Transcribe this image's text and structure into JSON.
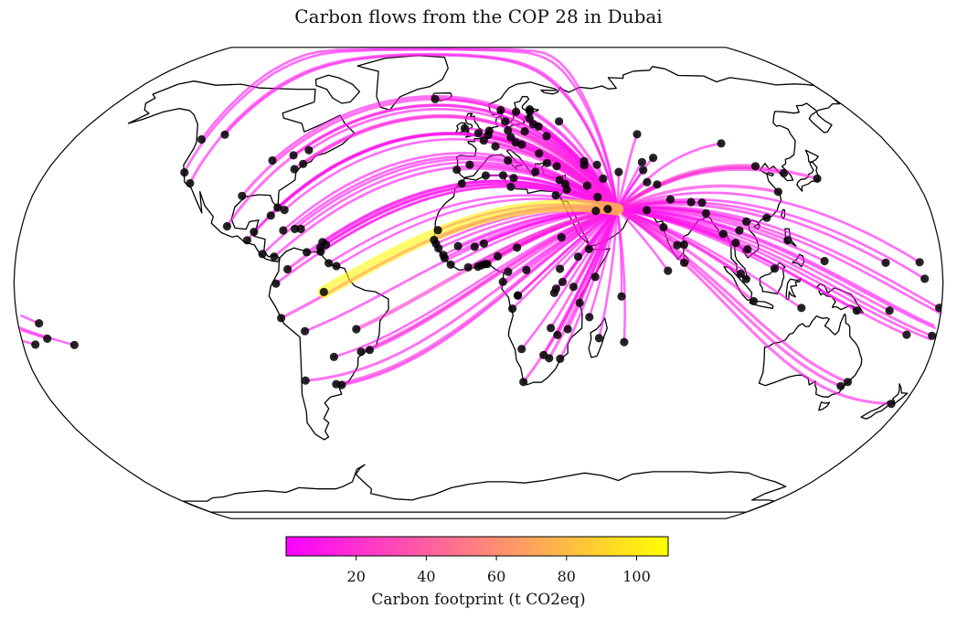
{
  "title": "Carbon flows from the COP 28 in Dubai",
  "colorbar": {
    "label": "Carbon footprint (t CO2eq)",
    "ticks": [
      20,
      40,
      60,
      80,
      100
    ],
    "range": [
      0,
      109
    ],
    "colormap": "spring",
    "color_low": "#ff00ff",
    "color_high": "#ffff00"
  },
  "map": {
    "projection": "Robinson",
    "hub": {
      "name": "Dubai",
      "lon": 55.3,
      "lat": 25.2
    },
    "coastline_color": "#000000",
    "point_color": "#000000",
    "flows": [
      {
        "lon": -74.0,
        "lat": 40.7,
        "value": 12
      },
      {
        "lon": -87.6,
        "lat": 41.9,
        "value": 8
      },
      {
        "lon": -118.2,
        "lat": 34.1,
        "value": 9
      },
      {
        "lon": -122.4,
        "lat": 37.8,
        "value": 6
      },
      {
        "lon": -79.4,
        "lat": 43.7,
        "value": 10
      },
      {
        "lon": -73.6,
        "lat": 45.5,
        "value": 7
      },
      {
        "lon": -123.1,
        "lat": 49.3,
        "value": 6
      },
      {
        "lon": -114.1,
        "lat": 51.0,
        "value": 5
      },
      {
        "lon": -77.0,
        "lat": 38.9,
        "value": 14
      },
      {
        "lon": -80.2,
        "lat": 25.8,
        "value": 9
      },
      {
        "lon": -95.4,
        "lat": 29.8,
        "value": 11
      },
      {
        "lon": -99.1,
        "lat": 19.4,
        "value": 10
      },
      {
        "lon": -90.5,
        "lat": 14.6,
        "value": 7
      },
      {
        "lon": -84.1,
        "lat": 9.9,
        "value": 6
      },
      {
        "lon": -79.5,
        "lat": 9.0,
        "value": 7
      },
      {
        "lon": -74.1,
        "lat": 4.7,
        "value": 12
      },
      {
        "lon": -78.5,
        "lat": -0.2,
        "value": 8
      },
      {
        "lon": -77.0,
        "lat": -12.0,
        "value": 11
      },
      {
        "lon": -66.9,
        "lat": 10.5,
        "value": 6
      },
      {
        "lon": -61.5,
        "lat": 10.7,
        "value": 5
      },
      {
        "lon": -60.0,
        "lat": -3.1,
        "value": 105
      },
      {
        "lon": -47.9,
        "lat": -15.8,
        "value": 20
      },
      {
        "lon": -43.2,
        "lat": -22.9,
        "value": 14
      },
      {
        "lon": -46.6,
        "lat": -23.5,
        "value": 13
      },
      {
        "lon": -58.4,
        "lat": -34.6,
        "value": 12
      },
      {
        "lon": -56.2,
        "lat": -34.9,
        "value": 6
      },
      {
        "lon": -70.7,
        "lat": -33.4,
        "value": 9
      },
      {
        "lon": -68.1,
        "lat": -16.5,
        "value": 7
      },
      {
        "lon": -57.6,
        "lat": -25.3,
        "value": 5
      },
      {
        "lon": -72.3,
        "lat": 18.5,
        "value": 6
      },
      {
        "lon": -76.8,
        "lat": 18.0,
        "value": 6
      },
      {
        "lon": -69.9,
        "lat": 18.5,
        "value": 5
      },
      {
        "lon": -82.4,
        "lat": 23.1,
        "value": 7
      },
      {
        "lon": -61.0,
        "lat": 14.0,
        "value": 4
      },
      {
        "lon": -59.6,
        "lat": 13.1,
        "value": 4
      },
      {
        "lon": -77.3,
        "lat": 25.0,
        "value": 5
      },
      {
        "lon": -88.2,
        "lat": 17.5,
        "value": 4
      },
      {
        "lon": -61.7,
        "lat": 12.1,
        "value": 4
      },
      {
        "lon": -55.2,
        "lat": 5.8,
        "value": 4
      },
      {
        "lon": -58.2,
        "lat": 6.8,
        "value": 4
      },
      {
        "lon": -0.1,
        "lat": 51.5,
        "value": 15
      },
      {
        "lon": 2.35,
        "lat": 48.9,
        "value": 16
      },
      {
        "lon": 13.4,
        "lat": 52.5,
        "value": 14
      },
      {
        "lon": 12.5,
        "lat": 41.9,
        "value": 12
      },
      {
        "lon": -3.7,
        "lat": 40.4,
        "value": 11
      },
      {
        "lon": -9.1,
        "lat": 38.7,
        "value": 8
      },
      {
        "lon": 4.9,
        "lat": 52.4,
        "value": 10
      },
      {
        "lon": 4.35,
        "lat": 50.85,
        "value": 12
      },
      {
        "lon": 7.4,
        "lat": 46.9,
        "value": 8
      },
      {
        "lon": 16.4,
        "lat": 48.2,
        "value": 8
      },
      {
        "lon": 18.1,
        "lat": 59.3,
        "value": 9
      },
      {
        "lon": 10.75,
        "lat": 59.9,
        "value": 9
      },
      {
        "lon": 12.6,
        "lat": 55.7,
        "value": 8
      },
      {
        "lon": 24.9,
        "lat": 60.2,
        "value": 7
      },
      {
        "lon": -21.9,
        "lat": 64.1,
        "value": 6
      },
      {
        "lon": -6.3,
        "lat": 53.3,
        "value": 7
      },
      {
        "lon": 21.0,
        "lat": 52.2,
        "value": 9
      },
      {
        "lon": 14.4,
        "lat": 50.1,
        "value": 6
      },
      {
        "lon": 19.0,
        "lat": 47.5,
        "value": 6
      },
      {
        "lon": 26.1,
        "lat": 44.4,
        "value": 6
      },
      {
        "lon": 23.7,
        "lat": 37.98,
        "value": 7
      },
      {
        "lon": 28.97,
        "lat": 41.0,
        "value": 10
      },
      {
        "lon": 32.9,
        "lat": 39.9,
        "value": 8
      },
      {
        "lon": 30.5,
        "lat": 50.45,
        "value": 7
      },
      {
        "lon": 37.6,
        "lat": 55.75,
        "value": 12
      },
      {
        "lon": 27.6,
        "lat": 53.9,
        "value": 5
      },
      {
        "lon": 24.1,
        "lat": 56.95,
        "value": 5
      },
      {
        "lon": 25.3,
        "lat": 54.7,
        "value": 5
      },
      {
        "lon": 24.75,
        "lat": 59.4,
        "value": 5
      },
      {
        "lon": 44.8,
        "lat": 41.7,
        "value": 6
      },
      {
        "lon": 44.5,
        "lat": 40.2,
        "value": 6
      },
      {
        "lon": 49.9,
        "lat": 40.4,
        "value": 7
      },
      {
        "lon": 35.5,
        "lat": 33.9,
        "value": 5
      },
      {
        "lon": 35.9,
        "lat": 31.95,
        "value": 6
      },
      {
        "lon": 31.2,
        "lat": 30.0,
        "value": 9
      },
      {
        "lon": 13.2,
        "lat": 32.9,
        "value": 5
      },
      {
        "lon": 10.2,
        "lat": 36.8,
        "value": 6
      },
      {
        "lon": 3.0,
        "lat": 36.75,
        "value": 6
      },
      {
        "lon": -6.8,
        "lat": 34.0,
        "value": 7
      },
      {
        "lon": 14.5,
        "lat": 35.9,
        "value": 4
      },
      {
        "lon": 33.4,
        "lat": 35.2,
        "value": 5
      },
      {
        "lon": -17.4,
        "lat": 14.7,
        "value": 8
      },
      {
        "lon": -16.6,
        "lat": 13.45,
        "value": 5
      },
      {
        "lon": -15.6,
        "lat": 11.85,
        "value": 5
      },
      {
        "lon": -13.7,
        "lat": 9.6,
        "value": 5
      },
      {
        "lon": -13.2,
        "lat": 8.5,
        "value": 5
      },
      {
        "lon": -10.8,
        "lat": 6.3,
        "value": 5
      },
      {
        "lon": -4.0,
        "lat": 5.35,
        "value": 7
      },
      {
        "lon": -0.2,
        "lat": 5.6,
        "value": 7
      },
      {
        "lon": 1.2,
        "lat": 6.1,
        "value": 5
      },
      {
        "lon": 2.6,
        "lat": 6.5,
        "value": 5
      },
      {
        "lon": 3.4,
        "lat": 6.5,
        "value": 12
      },
      {
        "lon": 7.5,
        "lat": 9.1,
        "value": 14
      },
      {
        "lon": 11.5,
        "lat": 3.85,
        "value": 7
      },
      {
        "lon": 9.45,
        "lat": 0.4,
        "value": 6
      },
      {
        "lon": 15.3,
        "lat": -4.3,
        "value": 7
      },
      {
        "lon": 15.3,
        "lat": -4.25,
        "value": 6
      },
      {
        "lon": 13.2,
        "lat": -8.8,
        "value": 7
      },
      {
        "lon": 28.3,
        "lat": -15.4,
        "value": 6
      },
      {
        "lon": 31.05,
        "lat": -17.8,
        "value": 6
      },
      {
        "lon": 28.2,
        "lat": -25.75,
        "value": 12
      },
      {
        "lon": 18.4,
        "lat": -33.9,
        "value": 9
      },
      {
        "lon": 17.1,
        "lat": -22.6,
        "value": 5
      },
      {
        "lon": 25.9,
        "lat": -24.65,
        "value": 5
      },
      {
        "lon": 32.6,
        "lat": -25.95,
        "value": 6
      },
      {
        "lon": 35.0,
        "lat": -15.8,
        "value": 5
      },
      {
        "lon": 39.3,
        "lat": -6.8,
        "value": 7
      },
      {
        "lon": 36.8,
        "lat": -1.3,
        "value": 11
      },
      {
        "lon": 32.6,
        "lat": 0.35,
        "value": 6
      },
      {
        "lon": 30.1,
        "lat": -1.95,
        "value": 6
      },
      {
        "lon": 29.4,
        "lat": -3.4,
        "value": 5
      },
      {
        "lon": 38.75,
        "lat": 9.0,
        "value": 9
      },
      {
        "lon": 32.5,
        "lat": 15.6,
        "value": 6
      },
      {
        "lon": 43.1,
        "lat": 11.6,
        "value": 5
      },
      {
        "lon": 45.3,
        "lat": 2.05,
        "value": 5
      },
      {
        "lon": 47.5,
        "lat": -18.9,
        "value": 6
      },
      {
        "lon": 57.5,
        "lat": -20.2,
        "value": 5
      },
      {
        "lon": 55.5,
        "lat": -4.6,
        "value": 4
      },
      {
        "lon": 43.25,
        "lat": -11.7,
        "value": 4
      },
      {
        "lon": 15.0,
        "lat": 12.1,
        "value": 6
      },
      {
        "lon": 2.1,
        "lat": 13.5,
        "value": 6
      },
      {
        "lon": -1.5,
        "lat": 12.4,
        "value": 6
      },
      {
        "lon": -8.0,
        "lat": 12.65,
        "value": 6
      },
      {
        "lon": -15.95,
        "lat": 18.1,
        "value": 5
      },
      {
        "lon": 18.6,
        "lat": 4.4,
        "value": 5
      },
      {
        "lon": 31.6,
        "lat": 4.85,
        "value": 5
      },
      {
        "lon": 46.7,
        "lat": 24.7,
        "value": 10
      },
      {
        "lon": 51.5,
        "lat": 25.3,
        "value": 6
      },
      {
        "lon": 47.98,
        "lat": 29.4,
        "value": 6
      },
      {
        "lon": 44.4,
        "lat": 33.3,
        "value": 8
      },
      {
        "lon": 51.4,
        "lat": 35.7,
        "value": 9
      },
      {
        "lon": 69.2,
        "lat": 34.5,
        "value": 6
      },
      {
        "lon": 73.05,
        "lat": 33.7,
        "value": 10
      },
      {
        "lon": 67.0,
        "lat": 24.9,
        "value": 8
      },
      {
        "lon": 77.2,
        "lat": 28.6,
        "value": 18
      },
      {
        "lon": 72.9,
        "lat": 19.1,
        "value": 12
      },
      {
        "lon": 77.6,
        "lat": 12.95,
        "value": 9
      },
      {
        "lon": 80.3,
        "lat": 13.1,
        "value": 8
      },
      {
        "lon": 79.9,
        "lat": 6.9,
        "value": 7
      },
      {
        "lon": 73.5,
        "lat": 4.2,
        "value": 5
      },
      {
        "lon": 85.3,
        "lat": 27.7,
        "value": 6
      },
      {
        "lon": 90.4,
        "lat": 23.8,
        "value": 9
      },
      {
        "lon": 89.6,
        "lat": 27.5,
        "value": 4
      },
      {
        "lon": 96.1,
        "lat": 16.8,
        "value": 6
      },
      {
        "lon": 100.5,
        "lat": 13.75,
        "value": 10
      },
      {
        "lon": 102.6,
        "lat": 17.95,
        "value": 5
      },
      {
        "lon": 104.9,
        "lat": 11.55,
        "value": 6
      },
      {
        "lon": 105.85,
        "lat": 21.0,
        "value": 8
      },
      {
        "lon": 101.7,
        "lat": 3.15,
        "value": 10
      },
      {
        "lon": 103.8,
        "lat": 1.35,
        "value": 10
      },
      {
        "lon": 106.85,
        "lat": -6.2,
        "value": 14
      },
      {
        "lon": 114.9,
        "lat": 4.9,
        "value": 5
      },
      {
        "lon": 121.0,
        "lat": 14.6,
        "value": 11
      },
      {
        "lon": 125.6,
        "lat": -8.55,
        "value": 5
      },
      {
        "lon": 116.4,
        "lat": 39.9,
        "value": 20
      },
      {
        "lon": 121.5,
        "lat": 31.2,
        "value": 14
      },
      {
        "lon": 114.2,
        "lat": 22.3,
        "value": 10
      },
      {
        "lon": 126.98,
        "lat": 37.55,
        "value": 12
      },
      {
        "lon": 139.7,
        "lat": 35.7,
        "value": 14
      },
      {
        "lon": 106.9,
        "lat": 47.9,
        "value": 6
      },
      {
        "lon": 71.45,
        "lat": 51.15,
        "value": 7
      },
      {
        "lon": 69.25,
        "lat": 41.3,
        "value": 6
      },
      {
        "lon": 74.6,
        "lat": 42.85,
        "value": 5
      },
      {
        "lon": 68.8,
        "lat": 38.55,
        "value": 5
      },
      {
        "lon": 58.4,
        "lat": 37.95,
        "value": 5
      },
      {
        "lon": 147.2,
        "lat": -9.45,
        "value": 7
      },
      {
        "lon": 149.1,
        "lat": -35.3,
        "value": 12
      },
      {
        "lon": 151.2,
        "lat": -33.9,
        "value": 11
      },
      {
        "lon": 174.8,
        "lat": -41.3,
        "value": 10
      },
      {
        "lon": 178.4,
        "lat": -18.1,
        "value": 7
      },
      {
        "lon": 159.95,
        "lat": -9.45,
        "value": 6
      },
      {
        "lon": 168.3,
        "lat": -17.7,
        "value": 6
      },
      {
        "lon": 173.0,
        "lat": 1.45,
        "value": 6
      },
      {
        "lon": 171.4,
        "lat": 7.1,
        "value": 6
      },
      {
        "lon": 134.5,
        "lat": 7.5,
        "value": 6
      },
      {
        "lon": 158.2,
        "lat": 6.9,
        "value": 6
      },
      {
        "lon": 179.2,
        "lat": -8.5,
        "value": 6
      },
      {
        "lon": -171.8,
        "lat": -13.8,
        "value": 6
      },
      {
        "lon": -175.2,
        "lat": -21.1,
        "value": 6
      },
      {
        "lon": -159.8,
        "lat": -21.2,
        "value": 5
      },
      {
        "lon": -169.9,
        "lat": -19.05,
        "value": 5
      }
    ]
  }
}
